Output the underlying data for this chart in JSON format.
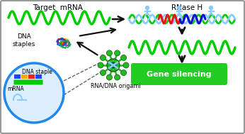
{
  "bg_color": "#e8e8e8",
  "border_color": "#999999",
  "title_target_mrna": "Target  mRNA",
  "title_rnase_h": "RNase H",
  "label_dna_staples": "DNA\nstaples",
  "label_rna_dna_origami": "RNA/DNA origami",
  "label_dna_staple": "DNA staple",
  "label_mrna": "mRNA",
  "label_gene_silencing": "Gene silencing",
  "green_color": "#00cc00",
  "light_blue": "#88ccff",
  "red_color": "#ee1111",
  "dark_blue": "#1111cc",
  "arrow_color": "#111111",
  "gene_silencing_bg": "#22cc22",
  "gene_silencing_text": "#ffffff",
  "circle_border": "#2288ee",
  "circle_fill": "#ddeeff",
  "nano_green": "#22bb22",
  "nano_dark": "#115511",
  "dna_purple": "#9922aa",
  "dna_orange": "#ee8800",
  "dna_red": "#cc2200",
  "dna_blue": "#1144cc",
  "dna_green2": "#00aa44"
}
